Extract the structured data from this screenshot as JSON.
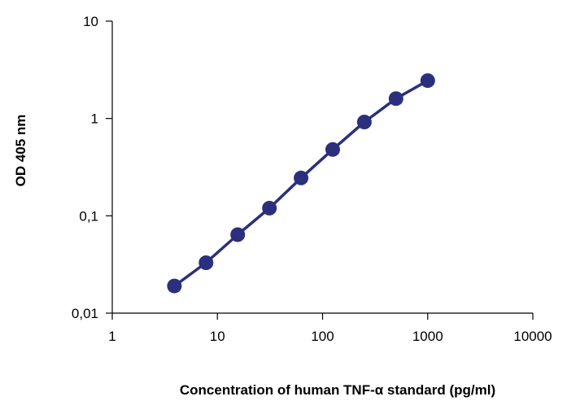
{
  "chart_data": {
    "type": "line",
    "title": "",
    "xlabel": "Concentration of human  TNF-α standard (pg/ml)",
    "ylabel": "OD 405 nm",
    "x_scale": "log",
    "y_scale": "log",
    "xlim": [
      1,
      10000
    ],
    "ylim": [
      0.01,
      10
    ],
    "x_ticks": [
      1,
      10,
      100,
      1000,
      10000
    ],
    "x_tick_labels": [
      "1",
      "10",
      "100",
      "1000",
      "10000"
    ],
    "y_ticks": [
      0.01,
      0.1,
      1,
      10
    ],
    "y_tick_labels": [
      "0,01",
      "0,1",
      "1",
      "10"
    ],
    "grid": false,
    "legend": "none",
    "colors": {
      "series": "#2b2f7e",
      "axis": "#000000"
    },
    "series": [
      {
        "x": [
          3.9,
          7.8,
          15.6,
          31.25,
          62.5,
          125,
          250,
          500,
          1000
        ],
        "values": [
          0.019,
          0.033,
          0.064,
          0.12,
          0.245,
          0.48,
          0.92,
          1.6,
          2.45
        ]
      }
    ]
  }
}
